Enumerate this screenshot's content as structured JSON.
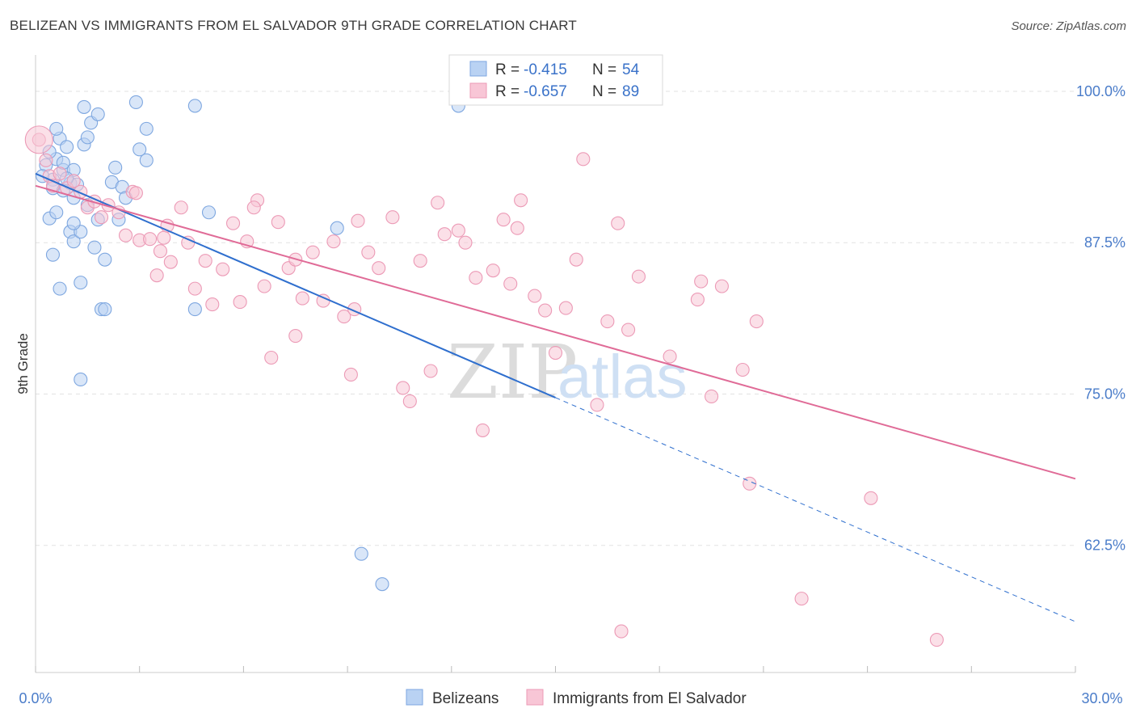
{
  "title": "BELIZEAN VS IMMIGRANTS FROM EL SALVADOR 9TH GRADE CORRELATION CHART",
  "source": "Source: ZipAtlas.com",
  "watermark": {
    "zip": "ZIP",
    "atlas": "atlas"
  },
  "colors": {
    "blue_fill": "#b9d2f3",
    "blue_stroke": "#7ea7e0",
    "blue_line": "#2f6fce",
    "pink_fill": "#f8c6d6",
    "pink_stroke": "#ec9ab6",
    "pink_line": "#e06b97",
    "tick_label": "#4a7cc9",
    "grid": "#e2e2e2"
  },
  "stats_legend": [
    {
      "r_label": "R =",
      "r_value": "-0.415",
      "n_label": "N =",
      "n_value": "54"
    },
    {
      "r_label": "R =",
      "r_value": "-0.657",
      "n_label": "N =",
      "n_value": "89"
    }
  ],
  "chart_data": {
    "type": "scatter",
    "title": "BELIZEAN VS IMMIGRANTS FROM EL SALVADOR 9TH GRADE CORRELATION CHART",
    "xlabel": "",
    "ylabel": "9th Grade",
    "xlim": [
      0,
      30
    ],
    "ylim": [
      52,
      103
    ],
    "x_tick_labels": [
      "0.0%",
      "30.0%"
    ],
    "y_ticks": [
      62.5,
      75.0,
      87.5,
      100.0
    ],
    "y_tick_labels": [
      "62.5%",
      "75.0%",
      "87.5%",
      "100.0%"
    ],
    "grid": true,
    "legend_position": "bottom-center",
    "series": [
      {
        "name": "Belizeans",
        "r": -0.415,
        "n": 54,
        "trend": {
          "x0": 0.0,
          "y0": 93.2,
          "x_solid_end": 15.0,
          "y_solid_end": 74.7,
          "x1": 30.0,
          "y1": 56.2
        },
        "points": [
          [
            0.3,
            93.9
          ],
          [
            0.5,
            92.7
          ],
          [
            0.5,
            92.0
          ],
          [
            0.2,
            93.0
          ],
          [
            0.6,
            94.4
          ],
          [
            0.8,
            93.5
          ],
          [
            0.4,
            89.5
          ],
          [
            0.6,
            90.0
          ],
          [
            0.5,
            86.5
          ],
          [
            0.7,
            96.1
          ],
          [
            0.6,
            96.9
          ],
          [
            0.9,
            95.4
          ],
          [
            0.8,
            94.1
          ],
          [
            1.0,
            92.4
          ],
          [
            1.1,
            93.5
          ],
          [
            1.2,
            92.3
          ],
          [
            1.0,
            88.4
          ],
          [
            1.1,
            87.6
          ],
          [
            1.3,
            88.4
          ],
          [
            1.1,
            89.1
          ],
          [
            1.4,
            95.6
          ],
          [
            1.5,
            96.2
          ],
          [
            1.4,
            98.7
          ],
          [
            1.6,
            97.4
          ],
          [
            1.8,
            98.1
          ],
          [
            1.7,
            87.1
          ],
          [
            2.0,
            86.1
          ],
          [
            1.5,
            90.6
          ],
          [
            1.8,
            89.4
          ],
          [
            2.4,
            89.4
          ],
          [
            2.3,
            93.7
          ],
          [
            2.2,
            92.5
          ],
          [
            2.5,
            92.1
          ],
          [
            2.9,
            99.1
          ],
          [
            3.0,
            95.2
          ],
          [
            3.2,
            96.9
          ],
          [
            3.2,
            94.3
          ],
          [
            1.9,
            82.0
          ],
          [
            2.0,
            82.0
          ],
          [
            4.6,
            82.0
          ],
          [
            5.0,
            90.0
          ],
          [
            4.6,
            98.8
          ],
          [
            0.7,
            83.7
          ],
          [
            1.3,
            84.2
          ],
          [
            1.3,
            76.2
          ],
          [
            8.7,
            88.7
          ],
          [
            9.4,
            61.8
          ],
          [
            10.0,
            59.3
          ],
          [
            12.2,
            98.8
          ],
          [
            0.4,
            95.0
          ],
          [
            1.1,
            91.2
          ],
          [
            0.9,
            92.8
          ],
          [
            2.6,
            91.2
          ],
          [
            0.8,
            91.8
          ]
        ]
      },
      {
        "name": "Immigrants from El Salvador",
        "r": -0.657,
        "n": 89,
        "trend": {
          "x0": 0.0,
          "y0": 92.2,
          "x1": 30.0,
          "y1": 68.0
        },
        "points": [
          [
            0.1,
            96.0
          ],
          [
            0.3,
            94.3
          ],
          [
            0.4,
            93.0
          ],
          [
            0.5,
            92.2
          ],
          [
            0.7,
            93.2
          ],
          [
            0.9,
            92.0
          ],
          [
            1.1,
            92.6
          ],
          [
            1.3,
            91.7
          ],
          [
            1.5,
            90.4
          ],
          [
            1.7,
            90.9
          ],
          [
            1.9,
            89.6
          ],
          [
            2.1,
            90.6
          ],
          [
            2.4,
            90.0
          ],
          [
            2.6,
            88.1
          ],
          [
            2.8,
            91.7
          ],
          [
            3.0,
            87.7
          ],
          [
            3.3,
            87.8
          ],
          [
            3.5,
            84.8
          ],
          [
            3.7,
            87.9
          ],
          [
            3.8,
            88.9
          ],
          [
            3.9,
            85.9
          ],
          [
            4.2,
            90.4
          ],
          [
            4.4,
            87.5
          ],
          [
            4.6,
            83.7
          ],
          [
            4.9,
            86.0
          ],
          [
            5.1,
            82.4
          ],
          [
            5.4,
            85.3
          ],
          [
            5.7,
            89.1
          ],
          [
            5.9,
            82.6
          ],
          [
            6.1,
            87.6
          ],
          [
            6.4,
            91.0
          ],
          [
            6.6,
            83.9
          ],
          [
            6.8,
            78.0
          ],
          [
            7.0,
            89.2
          ],
          [
            7.3,
            85.4
          ],
          [
            7.5,
            79.8
          ],
          [
            7.7,
            82.9
          ],
          [
            8.0,
            86.7
          ],
          [
            8.3,
            82.7
          ],
          [
            8.6,
            87.6
          ],
          [
            8.9,
            81.4
          ],
          [
            9.1,
            76.6
          ],
          [
            9.3,
            89.3
          ],
          [
            9.6,
            86.7
          ],
          [
            9.9,
            85.4
          ],
          [
            10.3,
            89.6
          ],
          [
            10.6,
            75.5
          ],
          [
            10.8,
            74.4
          ],
          [
            11.1,
            86.0
          ],
          [
            11.4,
            76.9
          ],
          [
            11.8,
            88.2
          ],
          [
            12.2,
            88.5
          ],
          [
            12.4,
            87.5
          ],
          [
            12.7,
            84.6
          ],
          [
            12.9,
            72.0
          ],
          [
            13.2,
            85.2
          ],
          [
            13.5,
            89.4
          ],
          [
            13.7,
            84.1
          ],
          [
            14.0,
            91.0
          ],
          [
            14.4,
            83.1
          ],
          [
            14.7,
            81.9
          ],
          [
            15.0,
            78.4
          ],
          [
            15.3,
            82.1
          ],
          [
            15.6,
            86.1
          ],
          [
            15.8,
            94.4
          ],
          [
            16.2,
            74.1
          ],
          [
            16.5,
            81.0
          ],
          [
            16.8,
            89.1
          ],
          [
            17.1,
            80.3
          ],
          [
            17.4,
            84.7
          ],
          [
            18.3,
            78.1
          ],
          [
            19.1,
            82.8
          ],
          [
            19.5,
            74.8
          ],
          [
            19.8,
            83.9
          ],
          [
            20.4,
            77.0
          ],
          [
            20.8,
            81.0
          ],
          [
            20.6,
            67.6
          ],
          [
            24.1,
            66.4
          ],
          [
            22.1,
            58.1
          ],
          [
            16.9,
            55.4
          ],
          [
            26.0,
            54.7
          ],
          [
            9.2,
            82.0
          ],
          [
            11.6,
            90.8
          ],
          [
            13.9,
            88.7
          ],
          [
            7.5,
            86.1
          ],
          [
            6.3,
            90.4
          ],
          [
            2.9,
            91.6
          ],
          [
            3.6,
            86.8
          ],
          [
            19.2,
            84.3
          ]
        ]
      }
    ]
  }
}
